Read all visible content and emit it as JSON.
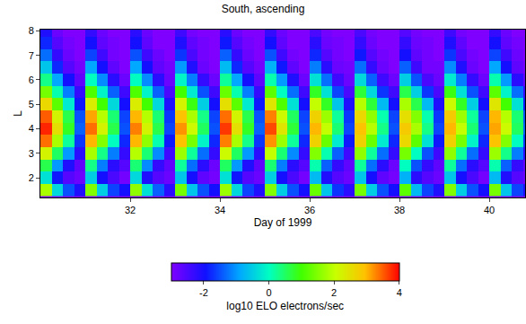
{
  "chart_data": {
    "type": "heatmap",
    "title": "South, ascending",
    "x_label": "Day of 1999",
    "y_label": "L",
    "xlim": [
      30,
      40.8
    ],
    "ylim": [
      1.2,
      8.05
    ],
    "xticks": [
      32,
      34,
      36,
      38,
      40
    ],
    "yticks": [
      2,
      3,
      4,
      5,
      6,
      7,
      8
    ],
    "x": [
      30.125,
      30.375,
      30.625,
      30.875,
      31.125,
      31.375,
      31.625,
      31.875,
      32.125,
      32.375,
      32.625,
      32.875,
      33.125,
      33.375,
      33.625,
      33.875,
      34.125,
      34.375,
      34.625,
      34.875,
      35.125,
      35.375,
      35.625,
      35.875,
      36.125,
      36.375,
      36.625,
      36.875,
      37.125,
      37.375,
      37.625,
      37.875,
      38.125,
      38.375,
      38.625,
      38.875,
      39.125,
      39.375,
      39.625,
      39.875,
      40.125,
      40.375,
      40.625,
      40.875
    ],
    "y": [
      1.5,
      2,
      2.5,
      3,
      3.5,
      4,
      4.5,
      5,
      5.5,
      6,
      6.5,
      7,
      7.5,
      8
    ],
    "z": [
      [
        1.8,
        -0.4,
        -1.5,
        -2.1,
        1.5,
        -0.5,
        -1.6,
        -2.0,
        1.6,
        -0.3,
        -1.4,
        -2.2,
        1.4,
        -0.6,
        -1.5,
        -2.0,
        1.7,
        -0.4,
        -1.6,
        -2.1,
        1.5,
        -0.5,
        -1.5,
        -2.0,
        1.3,
        -0.6,
        -1.7,
        -2.2,
        1.4,
        -0.5,
        -1.5,
        -2.0,
        1.2,
        -0.7,
        -1.6,
        -2.1,
        1.5,
        -0.5,
        -1.5,
        -2.0,
        1.4,
        -0.6,
        -1.6,
        -2.1
      ],
      [
        -0.3,
        -1.9,
        -2.6,
        -2.8,
        -0.5,
        -2.0,
        -2.5,
        -2.9,
        -0.4,
        -2.1,
        -2.6,
        -2.8,
        -0.6,
        -2.0,
        -2.7,
        -2.9,
        -0.3,
        -1.9,
        -2.6,
        -2.8,
        -0.5,
        -2.0,
        -2.5,
        -2.9,
        -0.7,
        -2.1,
        -2.6,
        -2.8,
        -0.6,
        -2.0,
        -2.7,
        -2.9,
        -0.8,
        -2.2,
        -2.6,
        -2.8,
        -0.6,
        -2.0,
        -2.5,
        -2.9,
        -0.7,
        -2.1,
        -2.6,
        -2.8
      ],
      [
        0.6,
        -1.0,
        -2.1,
        -2.7,
        0.3,
        -1.2,
        -2.2,
        -2.6,
        0.4,
        -1.1,
        -2.3,
        -2.7,
        0.2,
        -1.3,
        -2.2,
        -2.8,
        0.5,
        -1.0,
        -2.1,
        -2.7,
        0.4,
        -1.2,
        -2.2,
        -2.6,
        0.1,
        -1.4,
        -2.3,
        -2.7,
        0.2,
        -1.3,
        -2.2,
        -2.8,
        0.0,
        -1.5,
        -2.3,
        -2.7,
        0.2,
        -1.3,
        -2.2,
        -2.6,
        0.1,
        -1.4,
        -2.3,
        -2.7
      ],
      [
        2.2,
        0.5,
        -1.0,
        -2.2,
        1.8,
        0.3,
        -1.2,
        -2.3,
        1.9,
        0.4,
        -1.1,
        -2.4,
        1.7,
        0.2,
        -1.3,
        -2.3,
        2.1,
        0.5,
        -1.0,
        -2.2,
        2.0,
        0.4,
        -1.1,
        -2.3,
        1.5,
        0.1,
        -1.4,
        -2.4,
        1.6,
        0.2,
        -1.3,
        -2.3,
        1.4,
        0.0,
        -1.5,
        -2.4,
        1.6,
        0.2,
        -1.3,
        -2.3,
        1.7,
        0.3,
        -1.2,
        -2.2
      ],
      [
        3.4,
        1.8,
        0.2,
        -1.7,
        3.0,
        1.5,
        0.0,
        -1.8,
        3.0,
        1.6,
        0.1,
        -1.9,
        2.9,
        1.4,
        -0.1,
        -1.8,
        3.3,
        1.8,
        0.3,
        -1.7,
        3.2,
        1.7,
        0.2,
        -1.8,
        2.7,
        1.3,
        -0.2,
        -1.9,
        2.7,
        1.3,
        -0.2,
        -1.8,
        2.6,
        1.2,
        -0.3,
        -1.9,
        2.7,
        1.4,
        -0.1,
        -1.8,
        2.9,
        1.5,
        0.0,
        -1.7
      ],
      [
        3.8,
        2.5,
        0.8,
        -1.4,
        3.4,
        2.2,
        0.6,
        -1.5,
        3.3,
        2.2,
        0.6,
        -1.6,
        3.2,
        2.1,
        0.5,
        -1.5,
        3.7,
        2.5,
        0.8,
        -1.4,
        3.6,
        2.4,
        0.7,
        -1.5,
        3.0,
        2.0,
        0.4,
        -1.6,
        2.9,
        1.9,
        0.3,
        -1.5,
        2.8,
        1.8,
        0.3,
        -1.6,
        3.0,
        2.0,
        0.4,
        -1.5,
        3.1,
        2.1,
        0.5,
        -1.4
      ],
      [
        3.5,
        2.2,
        0.6,
        -1.5,
        3.1,
        1.9,
        0.4,
        -1.6,
        3.0,
        1.9,
        0.4,
        -1.7,
        2.9,
        1.8,
        0.3,
        -1.6,
        3.4,
        2.2,
        0.6,
        -1.5,
        3.3,
        2.1,
        0.5,
        -1.6,
        2.7,
        1.7,
        0.2,
        -1.7,
        2.6,
        1.6,
        0.1,
        -1.6,
        2.5,
        1.5,
        0.1,
        -1.7,
        2.8,
        1.7,
        0.2,
        -1.6,
        3.0,
        1.9,
        0.4,
        -1.5
      ],
      [
        2.6,
        1.2,
        -0.2,
        -1.9,
        2.3,
        1.0,
        -0.4,
        -2.0,
        2.3,
        1.0,
        -0.4,
        -2.1,
        2.2,
        0.9,
        -0.5,
        -2.0,
        2.5,
        1.2,
        -0.2,
        -1.9,
        2.4,
        1.1,
        -0.3,
        -2.0,
        2.0,
        0.8,
        -0.6,
        -2.1,
        1.9,
        0.7,
        -0.7,
        -2.0,
        1.8,
        0.6,
        -0.7,
        -2.1,
        2.1,
        0.8,
        -0.5,
        -2.0,
        2.4,
        1.0,
        -0.3,
        -1.9
      ],
      [
        1.4,
        0.1,
        -1.2,
        -2.3,
        1.1,
        -0.1,
        -1.4,
        -2.4,
        1.1,
        -0.1,
        -1.4,
        -2.5,
        1.0,
        -0.2,
        -1.5,
        -2.4,
        1.3,
        0.1,
        -1.2,
        -2.3,
        1.2,
        0.0,
        -1.3,
        -2.4,
        0.8,
        -0.3,
        -1.6,
        -2.5,
        0.7,
        -0.4,
        -1.7,
        -2.4,
        0.6,
        -0.5,
        -1.7,
        -2.5,
        0.9,
        -0.3,
        -1.5,
        -2.4,
        1.2,
        -0.1,
        -1.3,
        -2.3
      ],
      [
        0.3,
        -0.9,
        -2.0,
        -2.7,
        0.0,
        -1.1,
        -2.2,
        -2.8,
        0.0,
        -1.1,
        -2.2,
        -2.8,
        -0.1,
        -1.2,
        -2.3,
        -2.8,
        0.2,
        -0.9,
        -2.0,
        -2.7,
        0.1,
        -1.0,
        -2.1,
        -2.8,
        -0.3,
        -1.3,
        -2.4,
        -2.8,
        -0.4,
        -1.4,
        -2.4,
        -2.8,
        -0.5,
        -1.5,
        -2.5,
        -2.8,
        -0.2,
        -1.2,
        -2.3,
        -2.8,
        0.1,
        -1.0,
        -2.2,
        -2.7
      ],
      [
        -0.6,
        -1.8,
        -2.6,
        -2.9,
        -0.9,
        -2.0,
        -2.7,
        -3.0,
        -0.9,
        -2.0,
        -2.7,
        -2.9,
        -1.0,
        -2.1,
        -2.8,
        -3.0,
        -0.7,
        -1.8,
        -2.6,
        -2.9,
        -0.8,
        -1.9,
        -2.7,
        -3.0,
        -1.2,
        -2.2,
        -2.8,
        -2.9,
        -1.3,
        -2.3,
        -2.8,
        -3.0,
        -1.4,
        -2.4,
        -2.9,
        -2.9,
        -1.1,
        -2.1,
        -2.8,
        -3.0,
        -0.9,
        -2.0,
        -2.7,
        -2.9
      ],
      [
        -1.3,
        -2.3,
        -2.8,
        -3.0,
        -1.6,
        -2.4,
        -2.9,
        -3.0,
        -1.5,
        -2.4,
        -2.8,
        -3.0,
        -1.7,
        -2.5,
        -2.9,
        -3.0,
        -1.4,
        -2.3,
        -2.8,
        -3.0,
        -1.5,
        -2.4,
        -2.9,
        -3.0,
        -1.8,
        -2.6,
        -2.9,
        -3.0,
        -1.9,
        -2.6,
        -2.9,
        -3.0,
        -2.0,
        -2.7,
        -2.9,
        -3.0,
        -1.7,
        -2.5,
        -2.9,
        -3.0,
        -1.6,
        -2.4,
        -2.8,
        -3.0
      ],
      [
        -1.8,
        -2.6,
        -2.9,
        -3.0,
        -2.0,
        -2.7,
        -2.9,
        -3.0,
        -2.0,
        -2.7,
        -3.0,
        -3.0,
        -2.1,
        -2.7,
        -2.9,
        -3.0,
        -1.9,
        -2.6,
        -2.9,
        -3.0,
        -2.0,
        -2.7,
        -3.0,
        -3.0,
        -2.2,
        -2.8,
        -2.9,
        -3.0,
        -2.3,
        -2.8,
        -3.0,
        -3.0,
        -2.3,
        -2.8,
        -2.9,
        -3.0,
        -2.1,
        -2.7,
        -3.0,
        -3.0,
        -2.0,
        -2.7,
        -2.9,
        -3.0
      ],
      [
        -2.1,
        -2.8,
        -3.0,
        -3.0,
        -2.3,
        -2.8,
        -3.0,
        -3.0,
        -2.2,
        -2.8,
        -3.0,
        -3.0,
        -2.4,
        -2.9,
        -3.0,
        -3.0,
        -2.2,
        -2.8,
        -3.0,
        -3.0,
        -2.3,
        -2.8,
        -3.0,
        -3.0,
        -2.5,
        -2.9,
        -3.0,
        -3.0,
        -2.5,
        -2.9,
        -3.0,
        -3.0,
        -2.6,
        -2.9,
        -3.0,
        -3.0,
        -2.4,
        -2.9,
        -3.0,
        -3.0,
        -2.3,
        -2.8,
        -3.0,
        -3.0
      ]
    ],
    "colorbar": {
      "title": "log10 ELO electrons/sec",
      "range": [
        -3,
        4
      ],
      "ticks": [
        -2,
        0,
        2,
        4
      ]
    }
  }
}
